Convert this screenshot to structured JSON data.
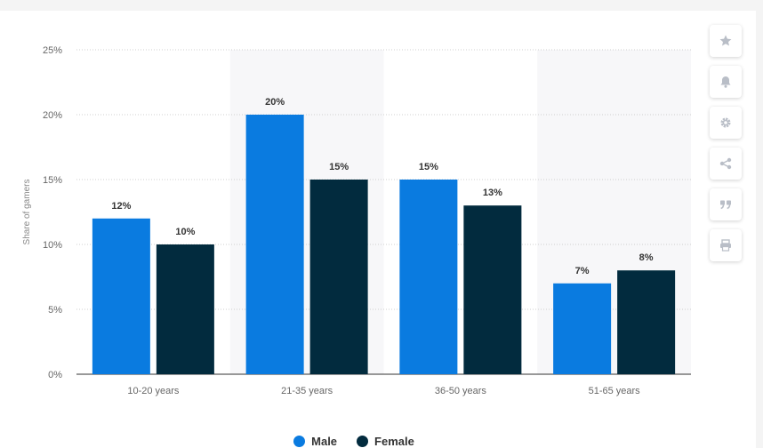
{
  "chart_data": {
    "type": "bar",
    "categories": [
      "10-20 years",
      "21-35 years",
      "36-50 years",
      "51-65 years"
    ],
    "series": [
      {
        "name": "Male",
        "values": [
          12,
          20,
          15,
          7
        ],
        "color": "#0a7be0"
      },
      {
        "name": "Female",
        "values": [
          10,
          15,
          13,
          8
        ],
        "color": "#022b3e"
      }
    ],
    "data_labels": [
      [
        "12%",
        "20%",
        "15%",
        "7%"
      ],
      [
        "10%",
        "15%",
        "13%",
        "8%"
      ]
    ],
    "ylabel": "Share of gamers",
    "ylim": [
      0,
      25
    ],
    "yticks": [
      0,
      5,
      10,
      15,
      20,
      25
    ],
    "ytick_labels": [
      "0%",
      "5%",
      "10%",
      "15%",
      "20%",
      "25%"
    ],
    "grid": true,
    "legend_position": "bottom"
  },
  "legend": {
    "items": [
      {
        "label": "Male",
        "color": "#0a7be0"
      },
      {
        "label": "Female",
        "color": "#022b3e"
      }
    ]
  },
  "toolbar": {
    "icons": [
      "star-icon",
      "bell-icon",
      "gear-icon",
      "share-icon",
      "quote-icon",
      "print-icon"
    ]
  }
}
